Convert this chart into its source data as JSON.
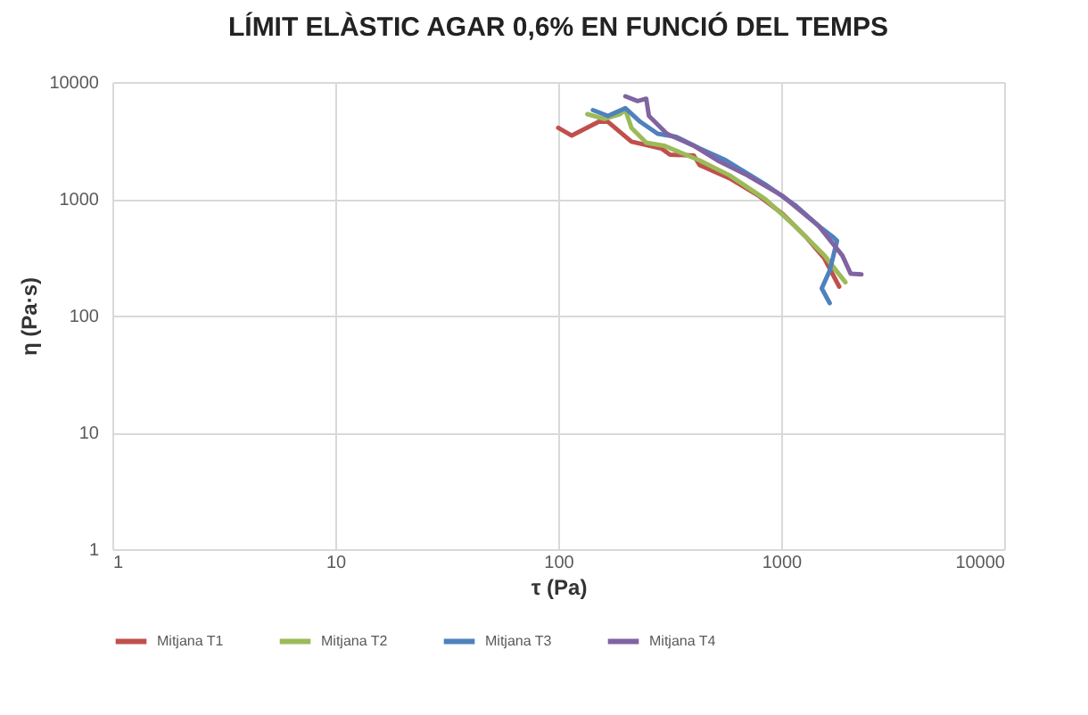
{
  "chart_data": {
    "type": "line",
    "title": "LÍMIT ELÀSTIC AGAR 0,6% EN FUNCIÓ DEL TEMPS",
    "xlabel": "τ (Pa)",
    "ylabel": "η (Pa·s)",
    "log": "xy",
    "grid": true,
    "legend": "bottom",
    "marker": "none",
    "xlim": [
      1,
      10000
    ],
    "xticks": [
      1,
      10,
      100,
      1000,
      10000
    ],
    "ylim": [
      1,
      10000
    ],
    "yticks": [
      1,
      10,
      100,
      1000,
      10000
    ],
    "series": [
      {
        "name": "Mitjana T1",
        "color": "#c0504d",
        "x": [
          100,
          115,
          152,
          167,
          213,
          290,
          317,
          405,
          431,
          586,
          796,
          1016,
          1300,
          1563,
          1820
        ],
        "values": [
          4050,
          3480,
          4570,
          4570,
          3090,
          2700,
          2390,
          2350,
          1940,
          1500,
          1055,
          741,
          465,
          308,
          177
        ]
      },
      {
        "name": "Mitjana T2",
        "color": "#9bbb59",
        "x": [
          135,
          161,
          189,
          200,
          213,
          248,
          298,
          431,
          586,
          848,
          1152,
          1563,
          1940
        ],
        "values": [
          5310,
          4830,
          5310,
          5750,
          4050,
          3030,
          2850,
          2130,
          1590,
          993,
          586,
          327,
          193
        ]
      },
      {
        "name": "Mitjana T3",
        "color": "#4f81bd",
        "x": [
          143,
          167,
          200,
          233,
          279,
          338,
          431,
          554,
          848,
          1152,
          1472,
          1720,
          1780,
          1650,
          1520,
          1650
        ],
        "values": [
          5750,
          5130,
          5970,
          4570,
          3610,
          3390,
          2700,
          2180,
          1330,
          885,
          586,
          465,
          437,
          243,
          171,
          128
        ]
      },
      {
        "name": "Mitjana T4",
        "color": "#8064a2",
        "x": [
          200,
          227,
          248,
          255,
          307,
          405,
          518,
          704,
          1016,
          1472,
          1880,
          2050,
          2290
        ],
        "values": [
          7550,
          6870,
          7200,
          5130,
          3610,
          2850,
          2130,
          1590,
          1055,
          586,
          327,
          228,
          225
        ]
      }
    ]
  }
}
